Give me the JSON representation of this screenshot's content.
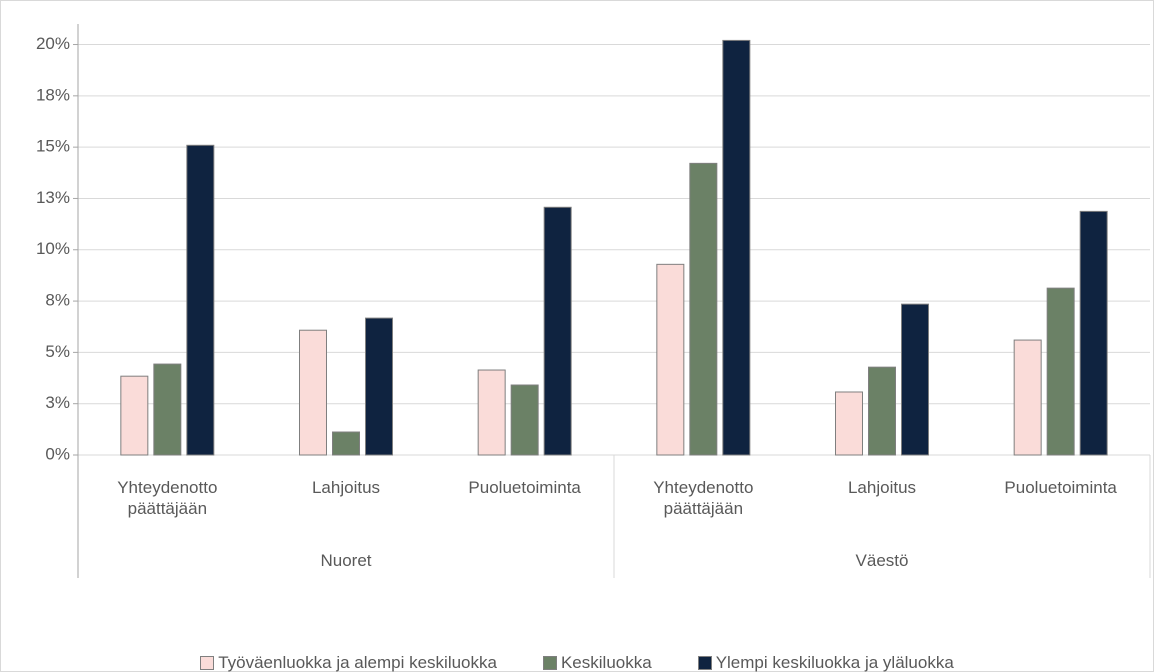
{
  "chart_data": {
    "type": "bar",
    "groups": [
      "Nuoret",
      "Väestö"
    ],
    "categories": [
      "Yhteydenotto päättäjään",
      "Lahjoitus",
      "Puoluetoiminta",
      "Yhteydenotto päättäjään",
      "Lahjoitus",
      "Puoluetoiminta"
    ],
    "series": [
      {
        "name": "Työväenluokka ja alempi keskiluokka",
        "color": "#fadcd9",
        "values": [
          3.84,
          6.08,
          4.14,
          9.29,
          3.07,
          5.6
        ]
      },
      {
        "name": "Keskiluokka",
        "color": "#6b8166",
        "values": [
          4.43,
          1.12,
          3.41,
          14.21,
          4.28,
          8.13
        ]
      },
      {
        "name": "Ylempi keskiluokka ja yläluokka",
        "color": "#0f2340",
        "values": [
          15.09,
          6.67,
          12.07,
          20.2,
          7.35,
          11.87
        ]
      }
    ],
    "ylim": [
      0,
      21
    ],
    "yticks": [
      {
        "value": 0,
        "label": "0%"
      },
      {
        "value": 2.5,
        "label": "3%"
      },
      {
        "value": 5,
        "label": "5%"
      },
      {
        "value": 7.5,
        "label": "8%"
      },
      {
        "value": 10,
        "label": "10%"
      },
      {
        "value": 12.5,
        "label": "13%"
      },
      {
        "value": 15,
        "label": "15%"
      },
      {
        "value": 17.5,
        "label": "18%"
      },
      {
        "value": 20,
        "label": "20%"
      }
    ],
    "grid": true,
    "legend": "bottom"
  }
}
